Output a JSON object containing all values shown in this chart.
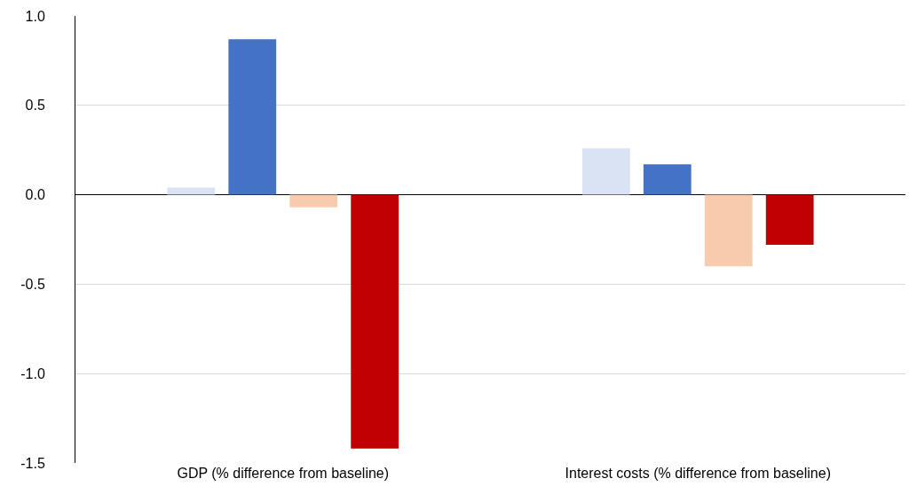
{
  "chart_data": {
    "type": "bar",
    "categories": [
      "GDP (% difference from baseline)",
      "Interest costs (% difference from baseline)"
    ],
    "series": [
      {
        "color": "#dae3f3",
        "values": [
          0.04,
          0.26
        ]
      },
      {
        "color": "#4472c4",
        "values": [
          0.87,
          0.17
        ]
      },
      {
        "color": "#f8cbad",
        "values": [
          -0.07,
          -0.4
        ]
      },
      {
        "color": "#c00000",
        "values": [
          -1.42,
          -0.28
        ]
      }
    ],
    "ylim": [
      -1.5,
      1.0
    ],
    "yticks": [
      {
        "value": -1.5,
        "label": "-1.5"
      },
      {
        "value": -1.0,
        "label": "-1.0"
      },
      {
        "value": -0.5,
        "label": "-0.5"
      },
      {
        "value": 0,
        "label": "0.0"
      },
      {
        "value": 0.5,
        "label": "0.5"
      },
      {
        "value": 1.0,
        "label": "1.0"
      }
    ],
    "grid": "y"
  }
}
